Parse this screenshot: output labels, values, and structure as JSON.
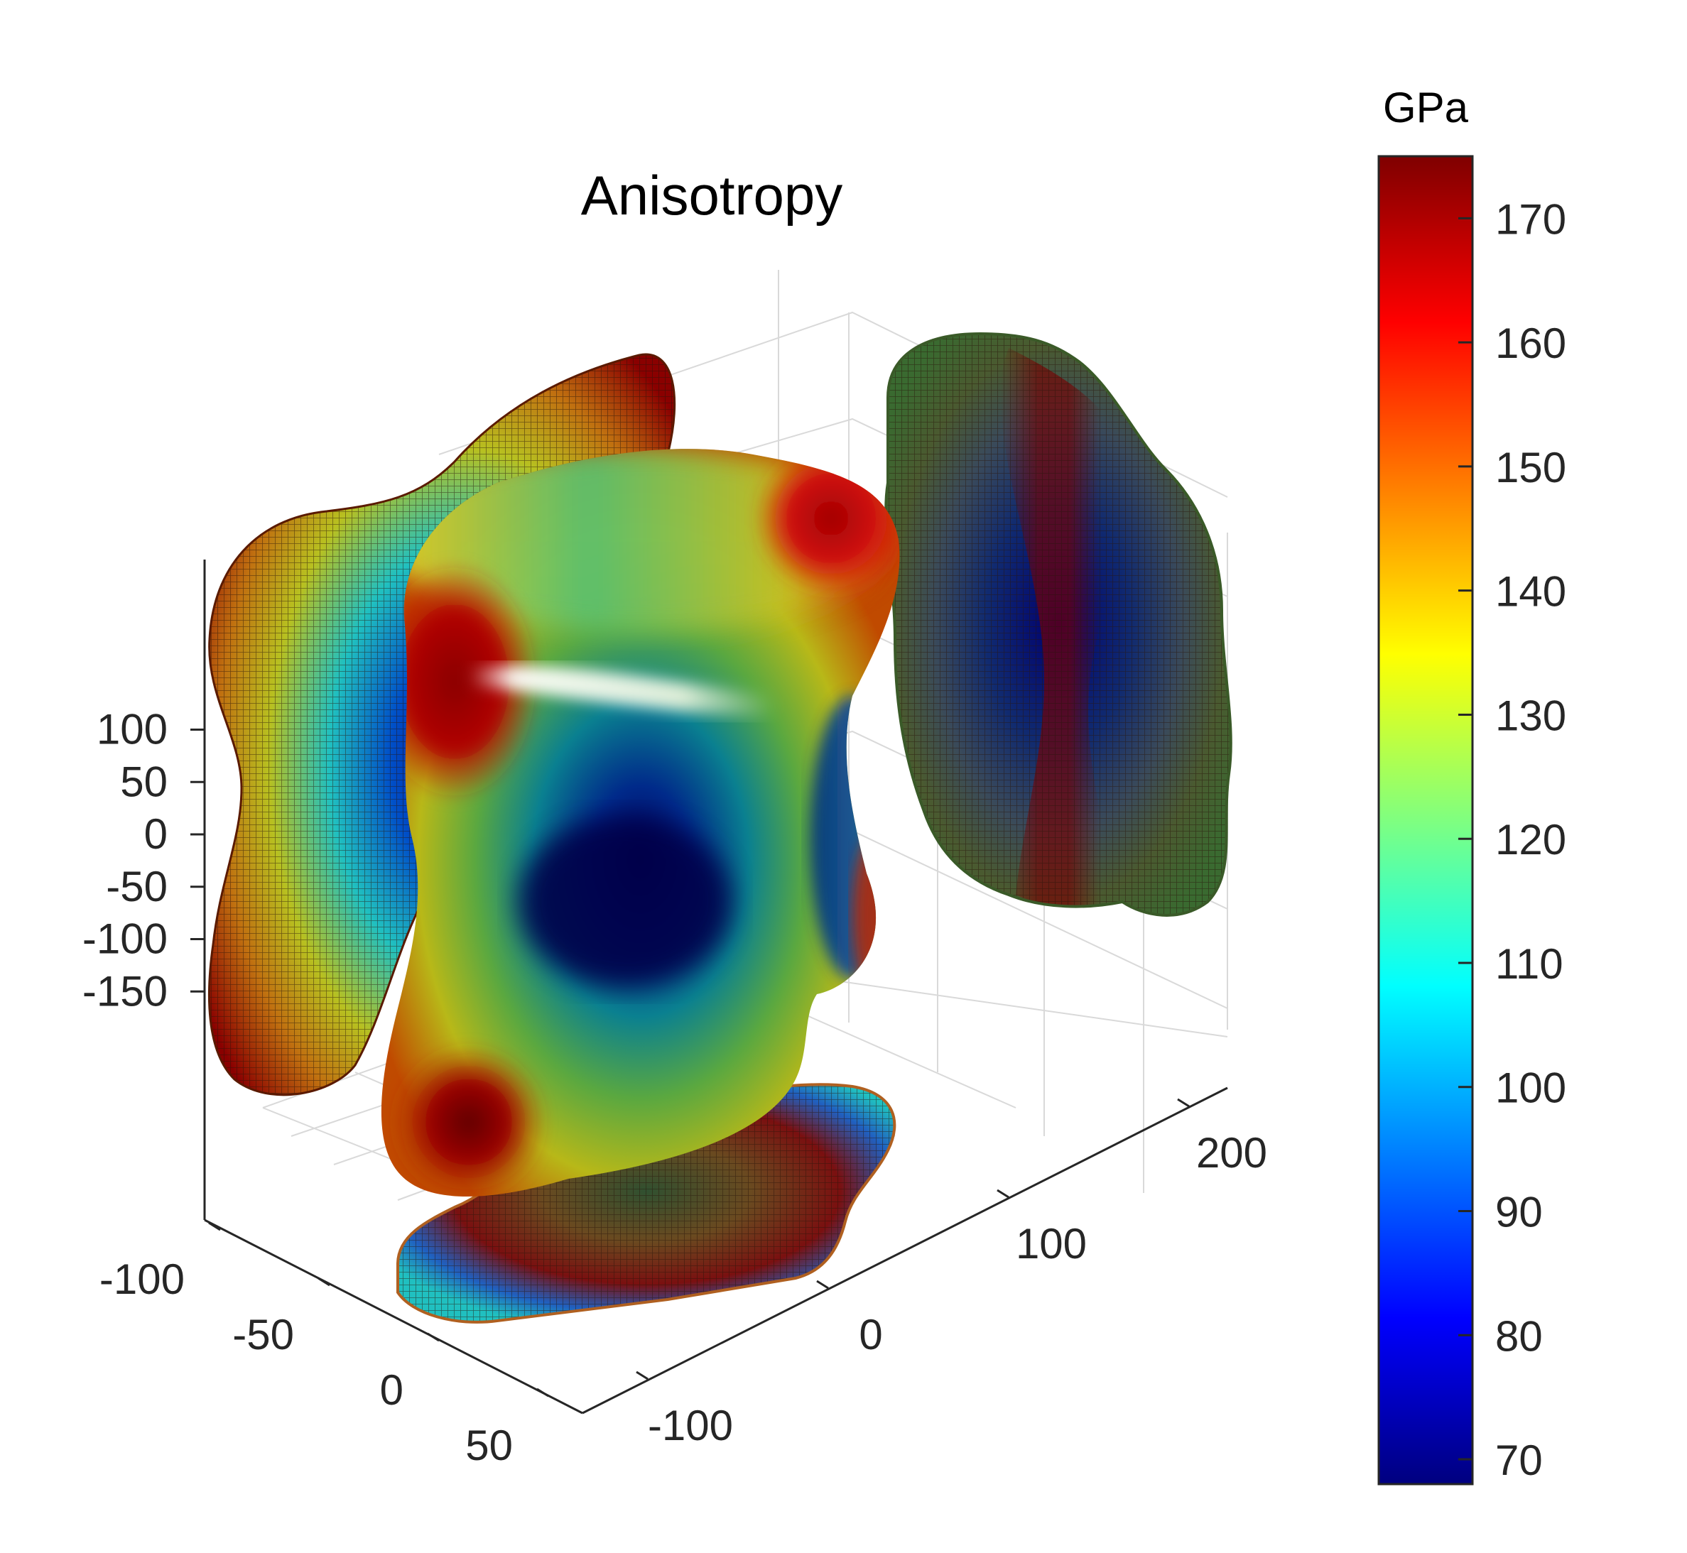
{
  "chart_data": {
    "type": "3d-surface",
    "title": "Anisotropy",
    "colorbar": {
      "label": "GPa",
      "min": 68,
      "max": 175,
      "ticks": [
        70,
        80,
        90,
        100,
        110,
        120,
        130,
        140,
        150,
        160,
        170
      ],
      "colormap": "jet",
      "position": "right"
    },
    "axes": {
      "x": {
        "ticks": [
          -100,
          -50,
          0,
          50
        ],
        "range": [
          -130,
          80
        ]
      },
      "y": {
        "ticks": [
          -100,
          0,
          100,
          200
        ],
        "range": [
          -150,
          230
        ]
      },
      "z": {
        "ticks": [
          -150,
          -100,
          -50,
          0,
          50,
          100
        ],
        "range": [
          -170,
          135
        ]
      }
    },
    "grid": true,
    "surfaces": [
      {
        "name": "main",
        "style": "solid",
        "value_range": [
          68,
          175
        ]
      },
      {
        "name": "projection-left",
        "style": "mesh"
      },
      {
        "name": "projection-right",
        "style": "mesh"
      },
      {
        "name": "projection-bottom",
        "style": "mesh"
      }
    ]
  }
}
